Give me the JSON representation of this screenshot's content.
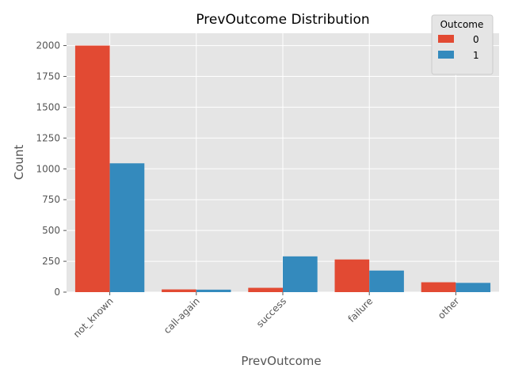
{
  "chart_data": {
    "type": "bar",
    "title": "PrevOutcome Distribution",
    "xlabel": "PrevOutcome",
    "ylabel": "Count",
    "categories": [
      "not_known",
      "call-again",
      "success",
      "failure",
      "other"
    ],
    "series": [
      {
        "name": "0",
        "values": [
          2000,
          22,
          35,
          265,
          80
        ]
      },
      {
        "name": "1",
        "values": [
          1045,
          20,
          290,
          175,
          75
        ]
      }
    ],
    "ylim": [
      0,
      2100
    ],
    "yticks": [
      0,
      250,
      500,
      750,
      1000,
      1250,
      1500,
      1750,
      2000
    ],
    "grid": true,
    "legend": {
      "title": "Outcome",
      "placement": "top-right"
    },
    "colors": {
      "series": [
        "#E24A33",
        "#348ABD"
      ],
      "plot_background": "#E5E5E5",
      "grid": "#FFFFFF",
      "text": "#555555",
      "title": "#000000"
    }
  }
}
